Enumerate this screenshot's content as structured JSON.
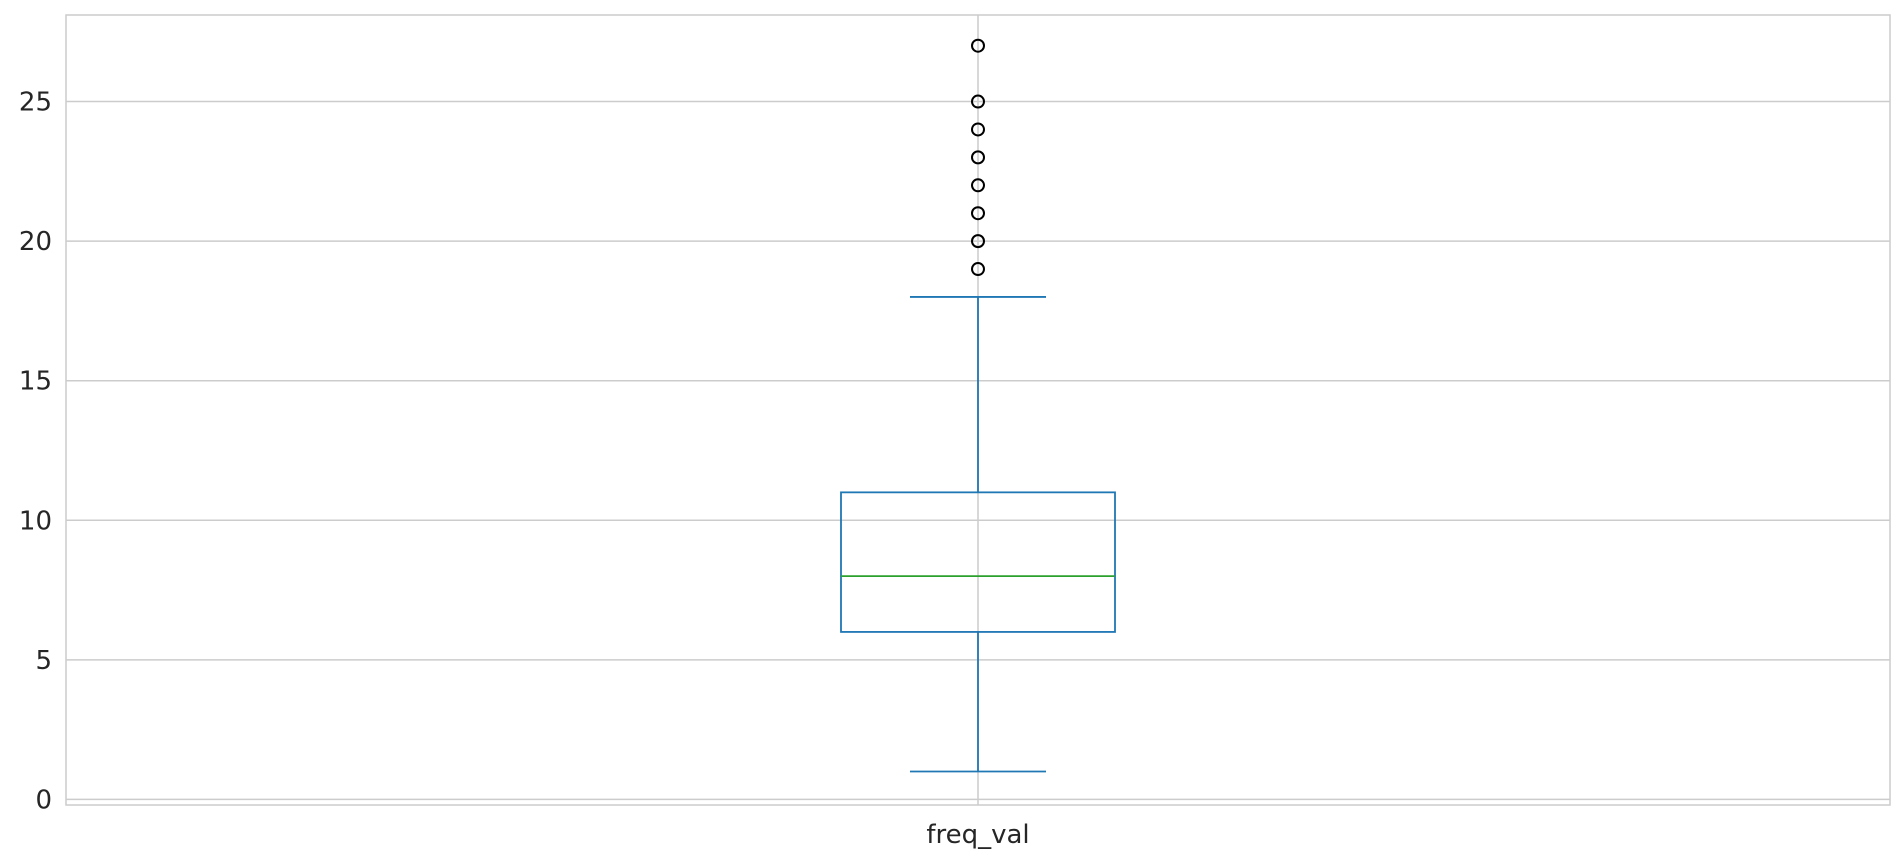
{
  "chart_data": {
    "type": "box",
    "title": "",
    "xlabel": "",
    "ylabel": "",
    "categories": [
      "freq_val"
    ],
    "ylim": [
      -0.2,
      28.1
    ],
    "yticks": [
      0,
      5,
      10,
      15,
      20,
      25
    ],
    "ytick_labels": [
      "0",
      "5",
      "10",
      "15",
      "20",
      "25"
    ],
    "grid": true,
    "boxes": [
      {
        "name": "freq_val",
        "whisker_low": 1,
        "q1": 6,
        "median": 8,
        "q3": 11,
        "whisker_high": 18,
        "outliers": [
          19,
          20,
          21,
          22,
          23,
          24,
          25,
          27
        ]
      }
    ],
    "colors": {
      "box": "#1f77b4",
      "median": "#2ca02c",
      "outlier_edge": "#000000",
      "grid": "#cccccc",
      "spine": "#cccccc"
    }
  }
}
